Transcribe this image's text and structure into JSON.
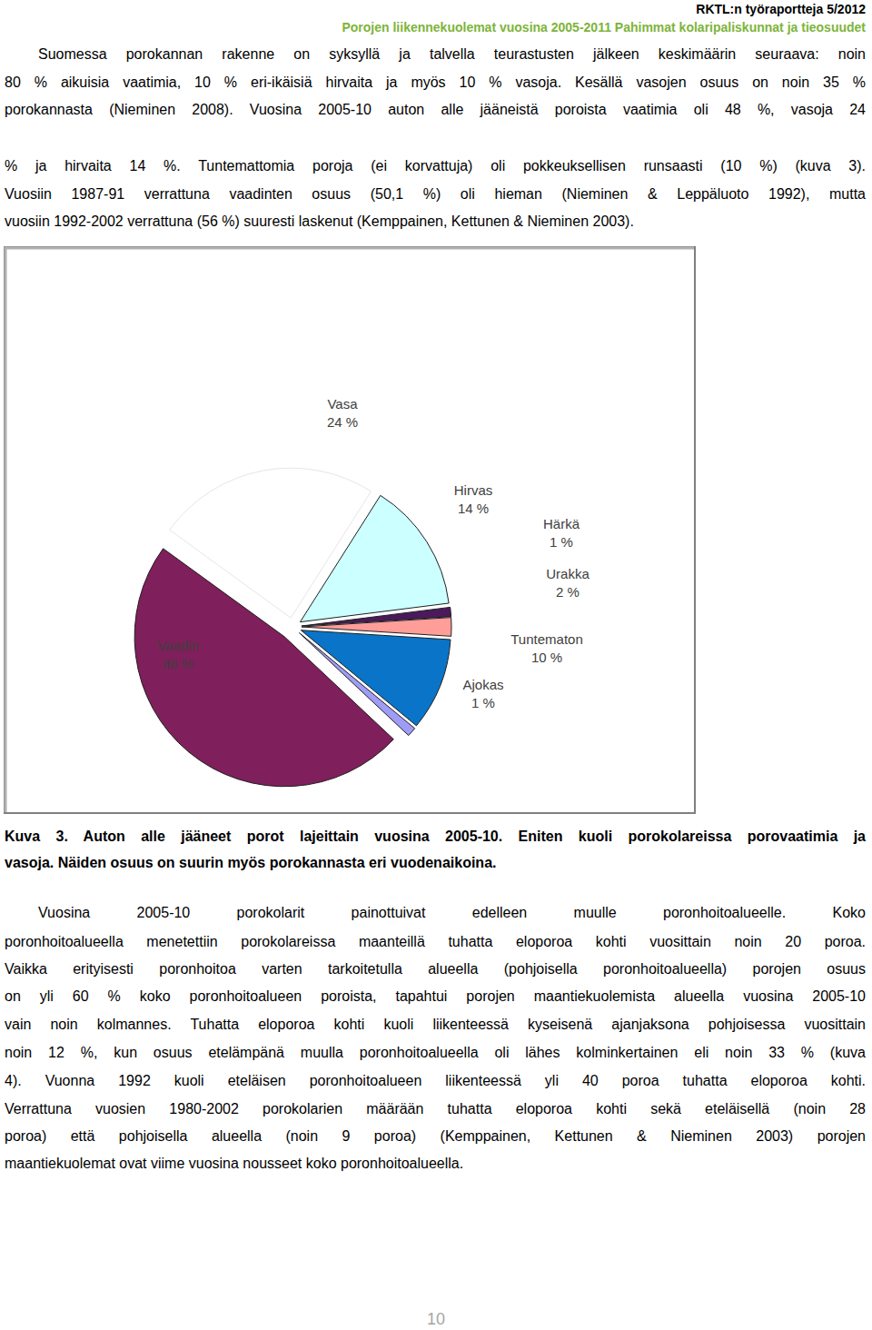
{
  "header": {
    "series": "RKTL:n työraportteja 5/2012",
    "title": "Porojen liikennekuolemat vuosina 2005-2011 Pahimmat kolaripaliskunnat ja tieosuudet"
  },
  "intro": {
    "lines": [
      "Suomessa porokannan rakenne on syksyllä ja talvella teurastusten jälkeen keskimäärin seuraava: noin",
      "80 % aikuisia vaatimia, 10 % eri-ikäisiä hirvaita ja myös 10 % vasoja. Kesällä vasojen osuus on noin 35 %",
      "porokannasta (Nieminen 2008). Vuosina 2005-10 auton alle jääneistä poroista vaatimia oli 48 %, vasoja 24",
      "% ja hirvaita 14 %. Tuntemattomia poroja (ei korvattuja) oli pokkeuksellisen runsaasti (10 %) (kuva 3).",
      "Vuosiin 1987-91 verrattuna vaadinten osuus (50,1 %) oli hieman (Nieminen & Leppäluoto 1992), mutta",
      "vuosiin 1992-2002 verrattuna (56 %) suuresti laskenut (Kemppainen, Kettunen & Nieminen 2003)."
    ]
  },
  "chart_data": {
    "type": "pie",
    "categories": [
      "Vasa",
      "Hirvas",
      "Härkä",
      "Urakka",
      "Tuntematon",
      "Ajokas",
      "Vaadin"
    ],
    "values": [
      24,
      14,
      1,
      2,
      10,
      1,
      48
    ],
    "value_labels": [
      "24 %",
      "14 %",
      "1 %",
      "2 %",
      "10 %",
      "1 %",
      "48 %"
    ],
    "colors": [
      "#ffffff",
      "#ccffff",
      "#4b1a5c",
      "#ff9d99",
      "#0a74c8",
      "#9f9cf5",
      "#7f1f5b"
    ],
    "data_labels": true
  },
  "caption": {
    "lines": [
      "Kuva 3. Auton alle jääneet porot lajeittain vuosina 2005-10. Eniten kuoli porokolareissa porovaatimia ja",
      "vasoja. Näiden osuus on suurin myös porokannasta eri vuodenaikoina."
    ]
  },
  "body": {
    "lines": [
      "Vuosina 2005-10 porokolarit painottuivat edelleen muulle poronhoitoalueelle. Koko",
      "poronhoitoalueella menetettiin porokolareissa maanteillä tuhatta eloporoa kohti vuosittain noin 20 poroa.",
      "Vaikka erityisesti poronhoitoa varten tarkoitetulla alueella (pohjoisella poronhoitoalueella) porojen osuus",
      "on yli 60 % koko poronhoitoalueen poroista, tapahtui porojen maantiekuolemista alueella vuosina 2005-10",
      "vain noin kolmannes. Tuhatta eloporoa kohti kuoli liikenteessä kyseisenä ajanjaksona pohjoisessa vuosittain",
      "noin 12 %, kun osuus etelämpänä muulla poronhoitoalueella oli lähes kolminkertainen eli noin 33 % (kuva",
      "4). Vuonna 1992 kuoli eteläisen poronhoitoalueen liikenteessä yli 40 poroa tuhatta eloporoa kohti.",
      "Verrattuna vuosien 1980-2002 porokolarien määrään tuhatta eloporoa kohti sekä eteläisellä (noin 28",
      "poroa) että pohjoisella alueella (noin 9 poroa) (Kemppainen, Kettunen & Nieminen 2003) porojen",
      "maantiekuolemat ovat viime vuosina nousseet koko poronhoitoalueella."
    ]
  },
  "page_number": "10"
}
